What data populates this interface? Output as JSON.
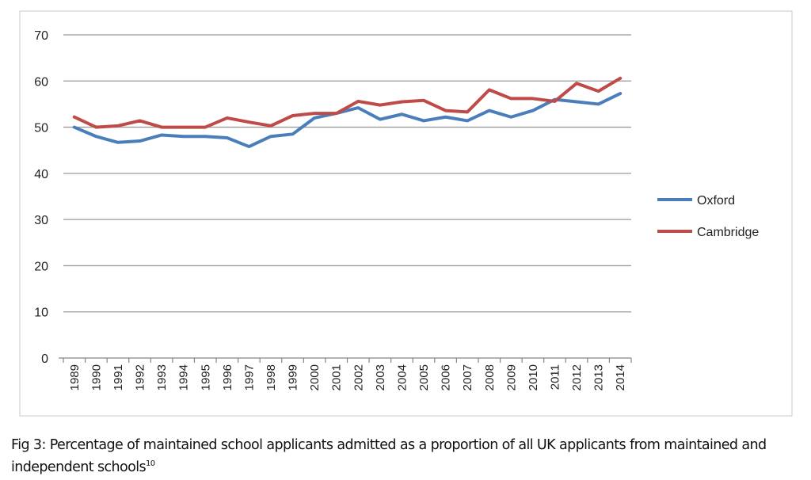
{
  "chart_data": {
    "type": "line",
    "title": "",
    "xlabel": "",
    "ylabel": "",
    "ylim": [
      0,
      70
    ],
    "yticks": [
      0,
      10,
      20,
      30,
      40,
      50,
      60,
      70
    ],
    "grid": true,
    "legend_position": "right",
    "categories": [
      "1989",
      "1990",
      "1991",
      "1992",
      "1993",
      "1994",
      "1995",
      "1996",
      "1997",
      "1998",
      "1999",
      "2000",
      "2001",
      "2002",
      "2003",
      "2004",
      "2005",
      "2006",
      "2007",
      "2008",
      "2009",
      "2010",
      "2011",
      "2012",
      "2013",
      "2014"
    ],
    "series": [
      {
        "name": "Oxford",
        "color": "#4a7ebb",
        "values": [
          50,
          48,
          46.7,
          47,
          48.3,
          48,
          48,
          47.7,
          45.8,
          48,
          48.5,
          52,
          53,
          54.2,
          51.7,
          52.8,
          51.4,
          52.2,
          51.4,
          53.6,
          52.2,
          53.6,
          56,
          55.5,
          55,
          57.3
        ]
      },
      {
        "name": "Cambridge",
        "color": "#be4b48",
        "values": [
          52.2,
          50,
          50.3,
          51.4,
          50,
          50,
          50,
          52,
          51.1,
          50.3,
          52.5,
          53,
          53,
          55.6,
          54.8,
          55.5,
          55.8,
          53.6,
          53.3,
          58.1,
          56.2,
          56.2,
          55.6,
          59.5,
          57.8,
          60.6
        ]
      }
    ]
  },
  "caption": {
    "text": "Fig 3: Percentage of maintained school applicants admitted as a proportion of all UK applicants from maintained and independent schools",
    "footnote": "10"
  }
}
